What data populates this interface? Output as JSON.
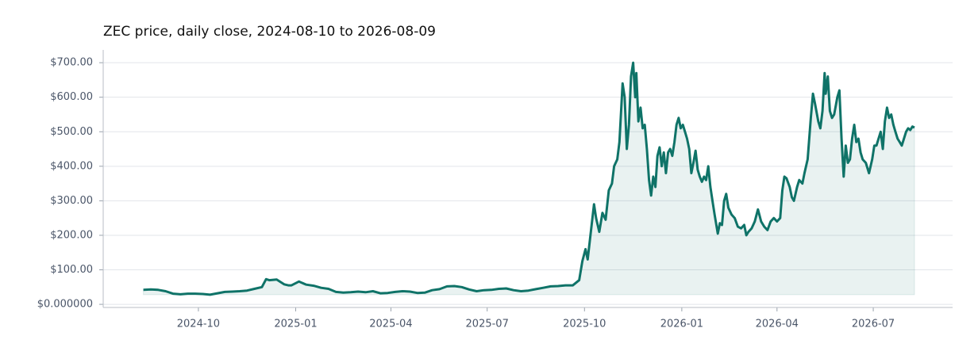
{
  "chart_data": {
    "type": "line",
    "title": "ZEC price, daily close, 2024-08-10 to 2026-08-09",
    "x": [
      "2024-08-10",
      "2024-08-17",
      "2024-08-24",
      "2024-08-31",
      "2024-09-07",
      "2024-09-14",
      "2024-09-21",
      "2024-09-28",
      "2024-10-05",
      "2024-10-12",
      "2024-10-19",
      "2024-10-26",
      "2024-11-02",
      "2024-11-09",
      "2024-11-16",
      "2024-11-23",
      "2024-11-30",
      "2024-12-04",
      "2024-12-07",
      "2024-12-14",
      "2024-12-21",
      "2024-12-25",
      "2024-12-28",
      "2025-01-04",
      "2025-01-11",
      "2025-01-18",
      "2025-01-25",
      "2025-02-01",
      "2025-02-08",
      "2025-02-15",
      "2025-02-22",
      "2025-03-01",
      "2025-03-08",
      "2025-03-15",
      "2025-03-22",
      "2025-03-29",
      "2025-04-05",
      "2025-04-12",
      "2025-04-19",
      "2025-04-26",
      "2025-05-03",
      "2025-05-10",
      "2025-05-17",
      "2025-05-24",
      "2025-05-31",
      "2025-06-07",
      "2025-06-14",
      "2025-06-21",
      "2025-06-28",
      "2025-07-05",
      "2025-07-12",
      "2025-07-19",
      "2025-07-26",
      "2025-08-02",
      "2025-08-09",
      "2025-08-16",
      "2025-08-23",
      "2025-08-30",
      "2025-09-06",
      "2025-09-13",
      "2025-09-20",
      "2025-09-26",
      "2025-09-29",
      "2025-10-02",
      "2025-10-04",
      "2025-10-07",
      "2025-10-10",
      "2025-10-12",
      "2025-10-15",
      "2025-10-18",
      "2025-10-21",
      "2025-10-24",
      "2025-10-27",
      "2025-10-29",
      "2025-11-01",
      "2025-11-03",
      "2025-11-06",
      "2025-11-08",
      "2025-11-10",
      "2025-11-12",
      "2025-11-14",
      "2025-11-16",
      "2025-11-18",
      "2025-11-19",
      "2025-11-21",
      "2025-11-23",
      "2025-11-25",
      "2025-11-27",
      "2025-11-29",
      "2025-12-01",
      "2025-12-03",
      "2025-12-05",
      "2025-12-07",
      "2025-12-09",
      "2025-12-11",
      "2025-12-13",
      "2025-12-15",
      "2025-12-17",
      "2025-12-19",
      "2025-12-21",
      "2025-12-23",
      "2025-12-25",
      "2025-12-27",
      "2025-12-29",
      "2025-12-31",
      "2026-01-02",
      "2026-01-04",
      "2026-01-06",
      "2026-01-08",
      "2026-01-10",
      "2026-01-12",
      "2026-01-14",
      "2026-01-16",
      "2026-01-18",
      "2026-01-20",
      "2026-01-22",
      "2026-01-24",
      "2026-01-26",
      "2026-01-28",
      "2026-01-30",
      "2026-02-01",
      "2026-02-04",
      "2026-02-06",
      "2026-02-08",
      "2026-02-10",
      "2026-02-12",
      "2026-02-14",
      "2026-02-17",
      "2026-02-20",
      "2026-02-23",
      "2026-02-26",
      "2026-03-01",
      "2026-03-03",
      "2026-03-05",
      "2026-03-08",
      "2026-03-11",
      "2026-03-14",
      "2026-03-17",
      "2026-03-20",
      "2026-03-23",
      "2026-03-26",
      "2026-03-29",
      "2026-04-01",
      "2026-04-04",
      "2026-04-06",
      "2026-04-08",
      "2026-04-10",
      "2026-04-13",
      "2026-04-15",
      "2026-04-17",
      "2026-04-20",
      "2026-04-22",
      "2026-04-25",
      "2026-04-27",
      "2026-04-30",
      "2026-05-03",
      "2026-05-05",
      "2026-05-07",
      "2026-05-10",
      "2026-05-12",
      "2026-05-14",
      "2026-05-16",
      "2026-05-17",
      "2026-05-19",
      "2026-05-21",
      "2026-05-23",
      "2026-05-25",
      "2026-05-28",
      "2026-05-30",
      "2026-06-01",
      "2026-06-03",
      "2026-06-05",
      "2026-06-07",
      "2026-06-09",
      "2026-06-11",
      "2026-06-13",
      "2026-06-15",
      "2026-06-17",
      "2026-06-19",
      "2026-06-21",
      "2026-06-24",
      "2026-06-27",
      "2026-06-30",
      "2026-07-02",
      "2026-07-04",
      "2026-07-06",
      "2026-07-08",
      "2026-07-10",
      "2026-07-12",
      "2026-07-14",
      "2026-07-16",
      "2026-07-18",
      "2026-07-20",
      "2026-07-22",
      "2026-07-24",
      "2026-07-26",
      "2026-07-28",
      "2026-07-30",
      "2026-08-01",
      "2026-08-03",
      "2026-08-05",
      "2026-08-07",
      "2026-08-09"
    ],
    "series": [
      {
        "name": "ZEC",
        "color": "#0f7368",
        "values": [
          42,
          43,
          42,
          38,
          31,
          29,
          31,
          31,
          30,
          28,
          32,
          36,
          37,
          38,
          40,
          45,
          50,
          73,
          70,
          72,
          58,
          55,
          55,
          66,
          57,
          54,
          48,
          45,
          36,
          34,
          35,
          37,
          35,
          38,
          32,
          33,
          36,
          38,
          37,
          33,
          34,
          41,
          44,
          52,
          53,
          50,
          43,
          38,
          41,
          42,
          45,
          46,
          41,
          38,
          40,
          44,
          48,
          52,
          53,
          55,
          55,
          70,
          125,
          160,
          130,
          210,
          290,
          250,
          210,
          265,
          245,
          330,
          350,
          400,
          420,
          470,
          640,
          600,
          450,
          520,
          660,
          700,
          600,
          670,
          530,
          570,
          510,
          520,
          450,
          360,
          315,
          370,
          340,
          430,
          455,
          400,
          440,
          380,
          440,
          450,
          430,
          470,
          520,
          540,
          510,
          520,
          500,
          480,
          450,
          380,
          410,
          445,
          390,
          370,
          355,
          370,
          360,
          400,
          340,
          300,
          260,
          205,
          235,
          230,
          300,
          320,
          280,
          260,
          250,
          225,
          220,
          230,
          200,
          210,
          220,
          240,
          275,
          240,
          225,
          215,
          240,
          250,
          240,
          250,
          330,
          370,
          365,
          340,
          310,
          300,
          340,
          360,
          350,
          380,
          420,
          540,
          610,
          580,
          530,
          510,
          560,
          670,
          610,
          660,
          560,
          540,
          550,
          600,
          620,
          480,
          370,
          460,
          410,
          420,
          480,
          520,
          470,
          480,
          440,
          420,
          410,
          380,
          420,
          460,
          460,
          480,
          500,
          450,
          530,
          570,
          540,
          550,
          520,
          500,
          480,
          470,
          460,
          480,
          500,
          510,
          505,
          515,
          512
        ]
      }
    ],
    "xlim": [
      "2024-07-03",
      "2026-09-14"
    ],
    "xticks": [
      "2024-10",
      "2025-01",
      "2025-04",
      "2025-07",
      "2025-10",
      "2026-01",
      "2026-04",
      "2026-07"
    ],
    "ylim": [
      -9,
      737
    ],
    "yticks": [
      {
        "value": 0,
        "label": "$0.000000"
      },
      {
        "value": 100,
        "label": "$100.00"
      },
      {
        "value": 200,
        "label": "$200.00"
      },
      {
        "value": 300,
        "label": "$300.00"
      },
      {
        "value": 400,
        "label": "$400.00"
      },
      {
        "value": 500,
        "label": "$500.00"
      },
      {
        "value": 600,
        "label": "$600.00"
      },
      {
        "value": 700,
        "label": "$700.00"
      }
    ],
    "grid": true
  }
}
